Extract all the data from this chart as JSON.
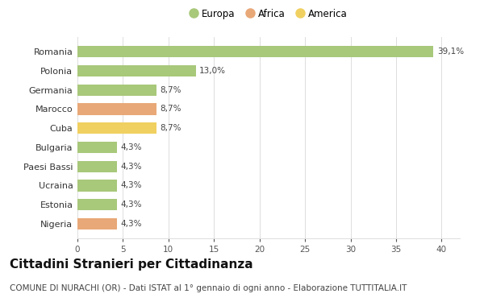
{
  "countries": [
    "Romania",
    "Polonia",
    "Germania",
    "Marocco",
    "Cuba",
    "Bulgaria",
    "Paesi Bassi",
    "Ucraina",
    "Estonia",
    "Nigeria"
  ],
  "values": [
    39.1,
    13.0,
    8.7,
    8.7,
    8.7,
    4.3,
    4.3,
    4.3,
    4.3,
    4.3
  ],
  "labels": [
    "39,1%",
    "13,0%",
    "8,7%",
    "8,7%",
    "8,7%",
    "4,3%",
    "4,3%",
    "4,3%",
    "4,3%",
    "4,3%"
  ],
  "continents": [
    "Europa",
    "Europa",
    "Europa",
    "Africa",
    "America",
    "Europa",
    "Europa",
    "Europa",
    "Europa",
    "Africa"
  ],
  "colors": {
    "Europa": "#a8c87a",
    "Africa": "#e8a878",
    "America": "#f0d060"
  },
  "legend_order": [
    "Europa",
    "Africa",
    "America"
  ],
  "title": "Cittadini Stranieri per Cittadinanza",
  "subtitle": "COMUNE DI NURACHI (OR) - Dati ISTAT al 1° gennaio di ogni anno - Elaborazione TUTTITALIA.IT",
  "xlim": [
    0,
    42
  ],
  "xticks": [
    0,
    5,
    10,
    15,
    20,
    25,
    30,
    35,
    40
  ],
  "background_color": "#ffffff",
  "grid_color": "#dddddd",
  "title_fontsize": 11,
  "subtitle_fontsize": 7.5,
  "bar_height": 0.6
}
